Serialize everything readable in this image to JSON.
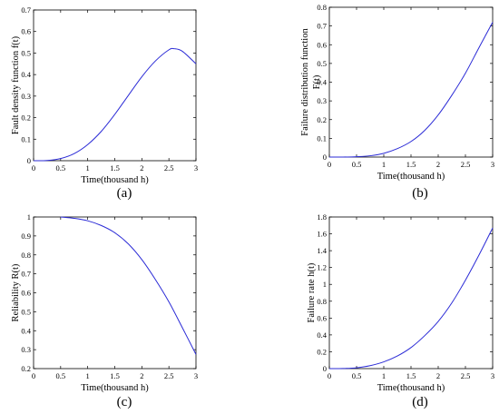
{
  "chart_data": [
    {
      "type": "line",
      "panel_label": "(a)",
      "xlabel": "Time(thousand h)",
      "ylabel": "Fault density function f(t)",
      "xlim": [
        0,
        3
      ],
      "ylim": [
        0,
        0.7
      ],
      "xticks": [
        "0",
        "0.5",
        "1",
        "1.5",
        "2",
        "2.5",
        "3"
      ],
      "yticks": [
        "0",
        "0.1",
        "0.2",
        "0.3",
        "0.4",
        "0.5",
        "0.6",
        "0.7"
      ],
      "grid": false,
      "line_color": "#2b2bd6",
      "x": [
        0,
        0.25,
        0.5,
        0.75,
        1.0,
        1.25,
        1.5,
        1.75,
        2.0,
        2.25,
        2.5,
        2.6,
        2.75,
        3.0
      ],
      "y": [
        0,
        0.001,
        0.01,
        0.033,
        0.075,
        0.136,
        0.215,
        0.303,
        0.39,
        0.463,
        0.515,
        0.52,
        0.508,
        0.45
      ]
    },
    {
      "type": "line",
      "panel_label": "(b)",
      "xlabel": "Time(thousand h)",
      "ylabel_lines": [
        "Failure distribution function",
        "F(t)"
      ],
      "xlim": [
        0,
        3
      ],
      "ylim": [
        0,
        0.8
      ],
      "xticks": [
        "0",
        "0.5",
        "1",
        "1.5",
        "2",
        "2.5",
        "3"
      ],
      "yticks": [
        "0",
        "0.1",
        "0.2",
        "0.3",
        "0.4",
        "0.5",
        "0.6",
        "0.7",
        "0.8"
      ],
      "grid": false,
      "line_color": "#2b2bd6",
      "x": [
        0,
        0.25,
        0.5,
        0.75,
        1.0,
        1.25,
        1.5,
        1.75,
        2.0,
        2.25,
        2.5,
        2.75,
        3.0
      ],
      "y": [
        0,
        0.0,
        0.002,
        0.007,
        0.02,
        0.045,
        0.083,
        0.142,
        0.225,
        0.33,
        0.448,
        0.585,
        0.72
      ]
    },
    {
      "type": "line",
      "panel_label": "(c)",
      "xlabel": "Time(thousand h)",
      "ylabel": "Reliability R(t)",
      "xlim": [
        0,
        3
      ],
      "ylim": [
        0.2,
        1
      ],
      "xticks": [
        "0",
        "0.5",
        "1",
        "1.5",
        "2",
        "2.5",
        "3"
      ],
      "yticks": [
        "0.2",
        "0.3",
        "0.4",
        "0.5",
        "0.6",
        "0.7",
        "0.8",
        "0.9",
        "1"
      ],
      "grid": false,
      "line_color": "#2b2bd6",
      "x": [
        0.5,
        0.75,
        1.0,
        1.25,
        1.5,
        1.75,
        2.0,
        2.25,
        2.5,
        2.75,
        3.0
      ],
      "y": [
        1.0,
        0.993,
        0.98,
        0.955,
        0.917,
        0.858,
        0.775,
        0.67,
        0.552,
        0.415,
        0.275
      ]
    },
    {
      "type": "line",
      "panel_label": "(d)",
      "xlabel": "Time(thousand h)",
      "ylabel": "Failure rate h(t)",
      "xlim": [
        0,
        3
      ],
      "ylim": [
        0,
        1.8
      ],
      "xticks": [
        "0",
        "0.5",
        "1",
        "1.5",
        "2",
        "2.5",
        "3"
      ],
      "yticks": [
        "0",
        "0.2",
        "0.4",
        "0.6",
        "0.8",
        "1",
        "1.2",
        "1.4",
        "1.6",
        "1.8"
      ],
      "grid": false,
      "line_color": "#2b2bd6",
      "x": [
        0,
        0.25,
        0.5,
        0.75,
        1.0,
        1.25,
        1.5,
        1.75,
        2.0,
        2.25,
        2.5,
        2.75,
        3.0
      ],
      "y": [
        0,
        0.001,
        0.01,
        0.035,
        0.08,
        0.15,
        0.25,
        0.39,
        0.56,
        0.78,
        1.05,
        1.35,
        1.67
      ]
    }
  ]
}
